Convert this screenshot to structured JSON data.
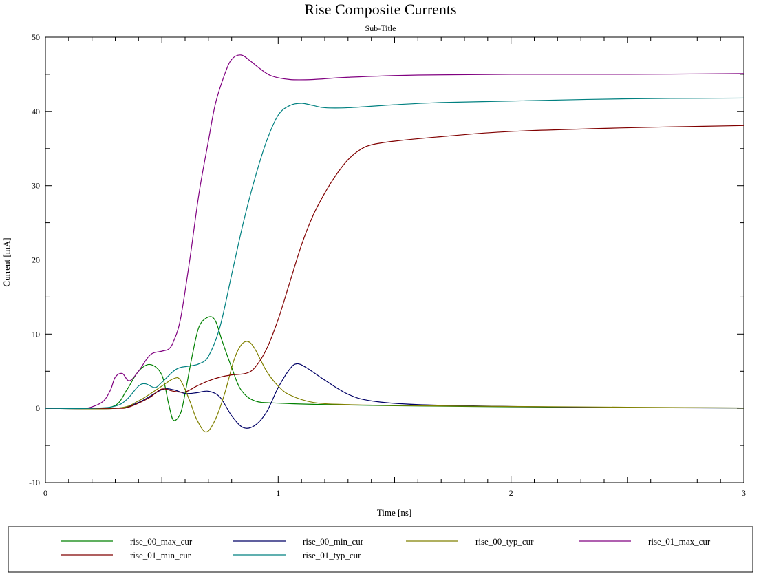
{
  "chart_data": {
    "type": "line",
    "title": "Rise Composite Currents",
    "subtitle": "Sub-Title",
    "xlabel": "Time [ns]",
    "ylabel": "Current [mA]",
    "xlim": [
      0,
      3
    ],
    "ylim": [
      -10,
      50
    ],
    "x_ticks": [
      0,
      1,
      2,
      3
    ],
    "y_ticks": [
      -10,
      0,
      10,
      20,
      30,
      40,
      50
    ],
    "grid": false,
    "legend_position": "bottom",
    "series": [
      {
        "name": "rise_00_max_cur",
        "color": "#008000",
        "points": [
          [
            0,
            0
          ],
          [
            0.2,
            0
          ],
          [
            0.3,
            0.4
          ],
          [
            0.35,
            2.5
          ],
          [
            0.4,
            5.0
          ],
          [
            0.45,
            5.9
          ],
          [
            0.5,
            4.5
          ],
          [
            0.53,
            0.5
          ],
          [
            0.55,
            -1.6
          ],
          [
            0.58,
            -0.7
          ],
          [
            0.6,
            2.0
          ],
          [
            0.63,
            7.0
          ],
          [
            0.66,
            11.0
          ],
          [
            0.7,
            12.3
          ],
          [
            0.73,
            11.8
          ],
          [
            0.76,
            9.0
          ],
          [
            0.8,
            5.5
          ],
          [
            0.84,
            2.5
          ],
          [
            0.9,
            1.0
          ],
          [
            1.0,
            0.7
          ],
          [
            1.2,
            0.5
          ],
          [
            1.5,
            0.35
          ],
          [
            2.0,
            0.2
          ],
          [
            2.5,
            0.1
          ],
          [
            3.0,
            0.05
          ]
        ]
      },
      {
        "name": "rise_00_min_cur",
        "color": "#000066",
        "points": [
          [
            0,
            0
          ],
          [
            0.3,
            0
          ],
          [
            0.4,
            0.8
          ],
          [
            0.5,
            2.5
          ],
          [
            0.55,
            2.5
          ],
          [
            0.6,
            2.0
          ],
          [
            0.65,
            2.1
          ],
          [
            0.7,
            2.3
          ],
          [
            0.75,
            1.5
          ],
          [
            0.8,
            -1.0
          ],
          [
            0.85,
            -2.6
          ],
          [
            0.9,
            -2.3
          ],
          [
            0.95,
            -0.5
          ],
          [
            1.0,
            2.8
          ],
          [
            1.05,
            5.3
          ],
          [
            1.08,
            6.0
          ],
          [
            1.12,
            5.5
          ],
          [
            1.2,
            3.8
          ],
          [
            1.3,
            1.9
          ],
          [
            1.4,
            1.0
          ],
          [
            1.6,
            0.5
          ],
          [
            2.0,
            0.25
          ],
          [
            2.5,
            0.1
          ],
          [
            3.0,
            0.05
          ]
        ]
      },
      {
        "name": "rise_00_typ_cur",
        "color": "#808000",
        "points": [
          [
            0,
            0
          ],
          [
            0.3,
            0
          ],
          [
            0.4,
            1.0
          ],
          [
            0.5,
            3.0
          ],
          [
            0.55,
            4.0
          ],
          [
            0.58,
            3.8
          ],
          [
            0.62,
            1.0
          ],
          [
            0.65,
            -1.5
          ],
          [
            0.69,
            -3.2
          ],
          [
            0.73,
            -1.5
          ],
          [
            0.77,
            2.0
          ],
          [
            0.81,
            6.5
          ],
          [
            0.84,
            8.5
          ],
          [
            0.87,
            9.0
          ],
          [
            0.9,
            8.0
          ],
          [
            0.95,
            5.0
          ],
          [
            1.0,
            3.0
          ],
          [
            1.05,
            1.8
          ],
          [
            1.15,
            0.8
          ],
          [
            1.3,
            0.5
          ],
          [
            1.6,
            0.35
          ],
          [
            2.0,
            0.25
          ],
          [
            2.5,
            0.15
          ],
          [
            3.0,
            0.05
          ]
        ]
      },
      {
        "name": "rise_01_max_cur",
        "color": "#800080",
        "points": [
          [
            0,
            0
          ],
          [
            0.15,
            0
          ],
          [
            0.2,
            0.2
          ],
          [
            0.25,
            1.0
          ],
          [
            0.28,
            2.5
          ],
          [
            0.3,
            4.2
          ],
          [
            0.33,
            4.7
          ],
          [
            0.36,
            3.7
          ],
          [
            0.4,
            5.0
          ],
          [
            0.45,
            7.2
          ],
          [
            0.5,
            7.7
          ],
          [
            0.53,
            8.0
          ],
          [
            0.55,
            9.0
          ],
          [
            0.58,
            12.0
          ],
          [
            0.62,
            20.0
          ],
          [
            0.66,
            29.0
          ],
          [
            0.7,
            36.0
          ],
          [
            0.73,
            41.0
          ],
          [
            0.77,
            45.0
          ],
          [
            0.8,
            47.0
          ],
          [
            0.84,
            47.6
          ],
          [
            0.88,
            46.8
          ],
          [
            0.92,
            45.8
          ],
          [
            0.97,
            44.8
          ],
          [
            1.05,
            44.3
          ],
          [
            1.15,
            44.3
          ],
          [
            1.3,
            44.6
          ],
          [
            1.6,
            44.9
          ],
          [
            2.0,
            45.0
          ],
          [
            2.5,
            45.0
          ],
          [
            3.0,
            45.1
          ]
        ]
      },
      {
        "name": "rise_01_min_cur",
        "color": "#800000",
        "points": [
          [
            0,
            0
          ],
          [
            0.3,
            0
          ],
          [
            0.35,
            0.1
          ],
          [
            0.4,
            0.7
          ],
          [
            0.45,
            1.5
          ],
          [
            0.5,
            2.6
          ],
          [
            0.55,
            2.3
          ],
          [
            0.6,
            2.2
          ],
          [
            0.65,
            3.0
          ],
          [
            0.7,
            3.7
          ],
          [
            0.75,
            4.2
          ],
          [
            0.8,
            4.5
          ],
          [
            0.86,
            4.7
          ],
          [
            0.9,
            5.5
          ],
          [
            0.95,
            8.0
          ],
          [
            1.0,
            12.0
          ],
          [
            1.05,
            17.0
          ],
          [
            1.1,
            22.0
          ],
          [
            1.15,
            26.0
          ],
          [
            1.2,
            29.0
          ],
          [
            1.25,
            31.5
          ],
          [
            1.3,
            33.5
          ],
          [
            1.35,
            34.8
          ],
          [
            1.4,
            35.5
          ],
          [
            1.5,
            36.0
          ],
          [
            1.7,
            36.6
          ],
          [
            2.0,
            37.3
          ],
          [
            2.5,
            37.8
          ],
          [
            3.0,
            38.1
          ]
        ]
      },
      {
        "name": "rise_01_typ_cur",
        "color": "#008080",
        "points": [
          [
            0,
            0
          ],
          [
            0.2,
            0
          ],
          [
            0.3,
            0.3
          ],
          [
            0.35,
            1.2
          ],
          [
            0.4,
            3.0
          ],
          [
            0.43,
            3.3
          ],
          [
            0.47,
            2.8
          ],
          [
            0.5,
            3.5
          ],
          [
            0.55,
            5.0
          ],
          [
            0.58,
            5.5
          ],
          [
            0.62,
            5.7
          ],
          [
            0.66,
            6.0
          ],
          [
            0.7,
            7.0
          ],
          [
            0.75,
            11.0
          ],
          [
            0.8,
            18.0
          ],
          [
            0.85,
            25.0
          ],
          [
            0.9,
            31.0
          ],
          [
            0.95,
            36.0
          ],
          [
            1.0,
            39.5
          ],
          [
            1.05,
            40.8
          ],
          [
            1.1,
            41.1
          ],
          [
            1.15,
            40.8
          ],
          [
            1.2,
            40.5
          ],
          [
            1.3,
            40.5
          ],
          [
            1.5,
            40.9
          ],
          [
            1.7,
            41.2
          ],
          [
            2.0,
            41.4
          ],
          [
            2.5,
            41.7
          ],
          [
            3.0,
            41.8
          ]
        ]
      }
    ]
  }
}
